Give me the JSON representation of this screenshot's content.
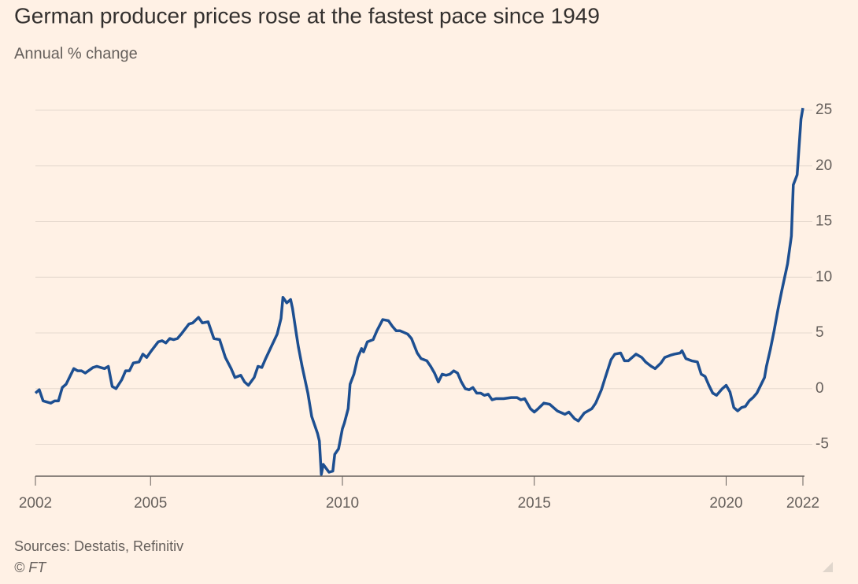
{
  "chart_data": {
    "type": "line",
    "title": "German producer prices rose at the fastest pace since 1949",
    "subtitle": "Annual % change",
    "source": "Sources: Destatis, Refinitiv",
    "copyright": "© FT",
    "xlim": [
      2002,
      2022
    ],
    "xticks": [
      2002,
      2005,
      2010,
      2015,
      2020,
      2022
    ],
    "ylim": [
      -8,
      25
    ],
    "yticks": [
      25,
      20,
      15,
      10,
      5,
      0,
      -5
    ],
    "grid": true,
    "series": [
      {
        "color": "#1d4f91",
        "x": [
          2002.0,
          2002.1,
          2002.2,
          2002.4,
          2002.5,
          2002.6,
          2002.7,
          2002.8,
          2003.0,
          2003.1,
          2003.2,
          2003.3,
          2003.5,
          2003.6,
          2003.8,
          2003.9,
          2004.0,
          2004.1,
          2004.25,
          2004.35,
          2004.45,
          2004.55,
          2004.7,
          2004.8,
          2004.9,
          2005.0,
          2005.2,
          2005.3,
          2005.4,
          2005.5,
          2005.6,
          2005.7,
          2005.8,
          2006.0,
          2006.1,
          2006.25,
          2006.35,
          2006.5,
          2006.65,
          2006.8,
          2006.95,
          2007.1,
          2007.2,
          2007.35,
          2007.45,
          2007.55,
          2007.7,
          2007.8,
          2007.9,
          2008.0,
          2008.15,
          2008.3,
          2008.4,
          2008.45,
          2008.55,
          2008.65,
          2008.7,
          2008.8,
          2008.85,
          2008.95,
          2009.1,
          2009.2,
          2009.35,
          2009.4,
          2009.45,
          2009.5,
          2009.65,
          2009.75,
          2009.8,
          2009.9,
          2010.0,
          2010.05,
          2010.15,
          2010.2,
          2010.3,
          2010.4,
          2010.5,
          2010.55,
          2010.65,
          2010.8,
          2010.9,
          2011.05,
          2011.2,
          2011.3,
          2011.4,
          2011.5,
          2011.7,
          2011.8,
          2011.95,
          2012.05,
          2012.2,
          2012.3,
          2012.4,
          2012.5,
          2012.6,
          2012.7,
          2012.8,
          2012.9,
          2013.0,
          2013.1,
          2013.2,
          2013.3,
          2013.4,
          2013.5,
          2013.6,
          2013.7,
          2013.8,
          2013.9,
          2014.0,
          2014.2,
          2014.4,
          2014.55,
          2014.65,
          2014.75,
          2014.9,
          2015.0,
          2015.1,
          2015.25,
          2015.4,
          2015.6,
          2015.8,
          2015.9,
          2016.05,
          2016.15,
          2016.3,
          2016.5,
          2016.6,
          2016.75,
          2016.85,
          2017.0,
          2017.1,
          2017.25,
          2017.35,
          2017.45,
          2017.55,
          2017.65,
          2017.8,
          2017.9,
          2018.05,
          2018.15,
          2018.3,
          2018.4,
          2018.55,
          2018.65,
          2018.8,
          2018.85,
          2018.95,
          2019.1,
          2019.25,
          2019.35,
          2019.45,
          2019.55,
          2019.65,
          2019.75,
          2019.9,
          2020.0,
          2020.1,
          2020.2,
          2020.3,
          2020.4,
          2020.5,
          2020.6,
          2020.7,
          2020.8,
          2020.9,
          2021.0,
          2021.05,
          2021.15,
          2021.25,
          2021.35,
          2021.45,
          2021.6,
          2021.7,
          2021.75,
          2021.85,
          2021.95,
          2022.0
        ],
        "values": [
          -0.4,
          -0.1,
          -1.1,
          -1.3,
          -1.1,
          -1.1,
          0.1,
          0.4,
          1.8,
          1.6,
          1.6,
          1.4,
          1.9,
          2.0,
          1.8,
          2.0,
          0.2,
          0,
          0.8,
          1.6,
          1.6,
          2.3,
          2.4,
          3.1,
          2.8,
          3.3,
          4.2,
          4.3,
          4.1,
          4.5,
          4.4,
          4.5,
          4.9,
          5.8,
          5.9,
          6.4,
          5.9,
          6.0,
          4.5,
          4.4,
          2.8,
          1.8,
          1.0,
          1.2,
          0.6,
          0.3,
          1.0,
          2.0,
          1.9,
          2.7,
          3.8,
          4.9,
          6.3,
          8.2,
          7.7,
          8.0,
          7.2,
          4.9,
          3.8,
          2.0,
          -0.4,
          -2.5,
          -4.0,
          -4.7,
          -7.7,
          -6.8,
          -7.5,
          -7.4,
          -5.9,
          -5.4,
          -3.6,
          -3.1,
          -1.8,
          0.4,
          1.3,
          2.8,
          3.6,
          3.3,
          4.2,
          4.4,
          5.2,
          6.2,
          6.1,
          5.6,
          5.2,
          5.2,
          4.9,
          4.5,
          3.2,
          2.7,
          2.5,
          2.0,
          1.4,
          0.6,
          1.3,
          1.2,
          1.3,
          1.6,
          1.4,
          0.6,
          0,
          -0.1,
          0.1,
          -0.4,
          -0.4,
          -0.6,
          -0.5,
          -1.0,
          -0.9,
          -0.9,
          -0.8,
          -0.8,
          -1.0,
          -0.9,
          -1.8,
          -2.1,
          -1.8,
          -1.3,
          -1.4,
          -2.0,
          -2.3,
          -2.1,
          -2.7,
          -2.9,
          -2.2,
          -1.8,
          -1.3,
          -0.1,
          1.0,
          2.6,
          3.1,
          3.2,
          2.5,
          2.5,
          2.8,
          3.1,
          2.8,
          2.4,
          2.0,
          1.8,
          2.3,
          2.8,
          3.0,
          3.1,
          3.2,
          3.4,
          2.7,
          2.5,
          2.4,
          1.3,
          1.1,
          0.3,
          -0.4,
          -0.6,
          0,
          0.3,
          -0.3,
          -1.7,
          -2.0,
          -1.7,
          -1.6,
          -1.1,
          -0.8,
          -0.4,
          0.3,
          1.0,
          2.0,
          3.5,
          5.2,
          7.1,
          8.8,
          11.2,
          13.7,
          18.3,
          19.2,
          24.2,
          25.2
        ]
      }
    ]
  }
}
